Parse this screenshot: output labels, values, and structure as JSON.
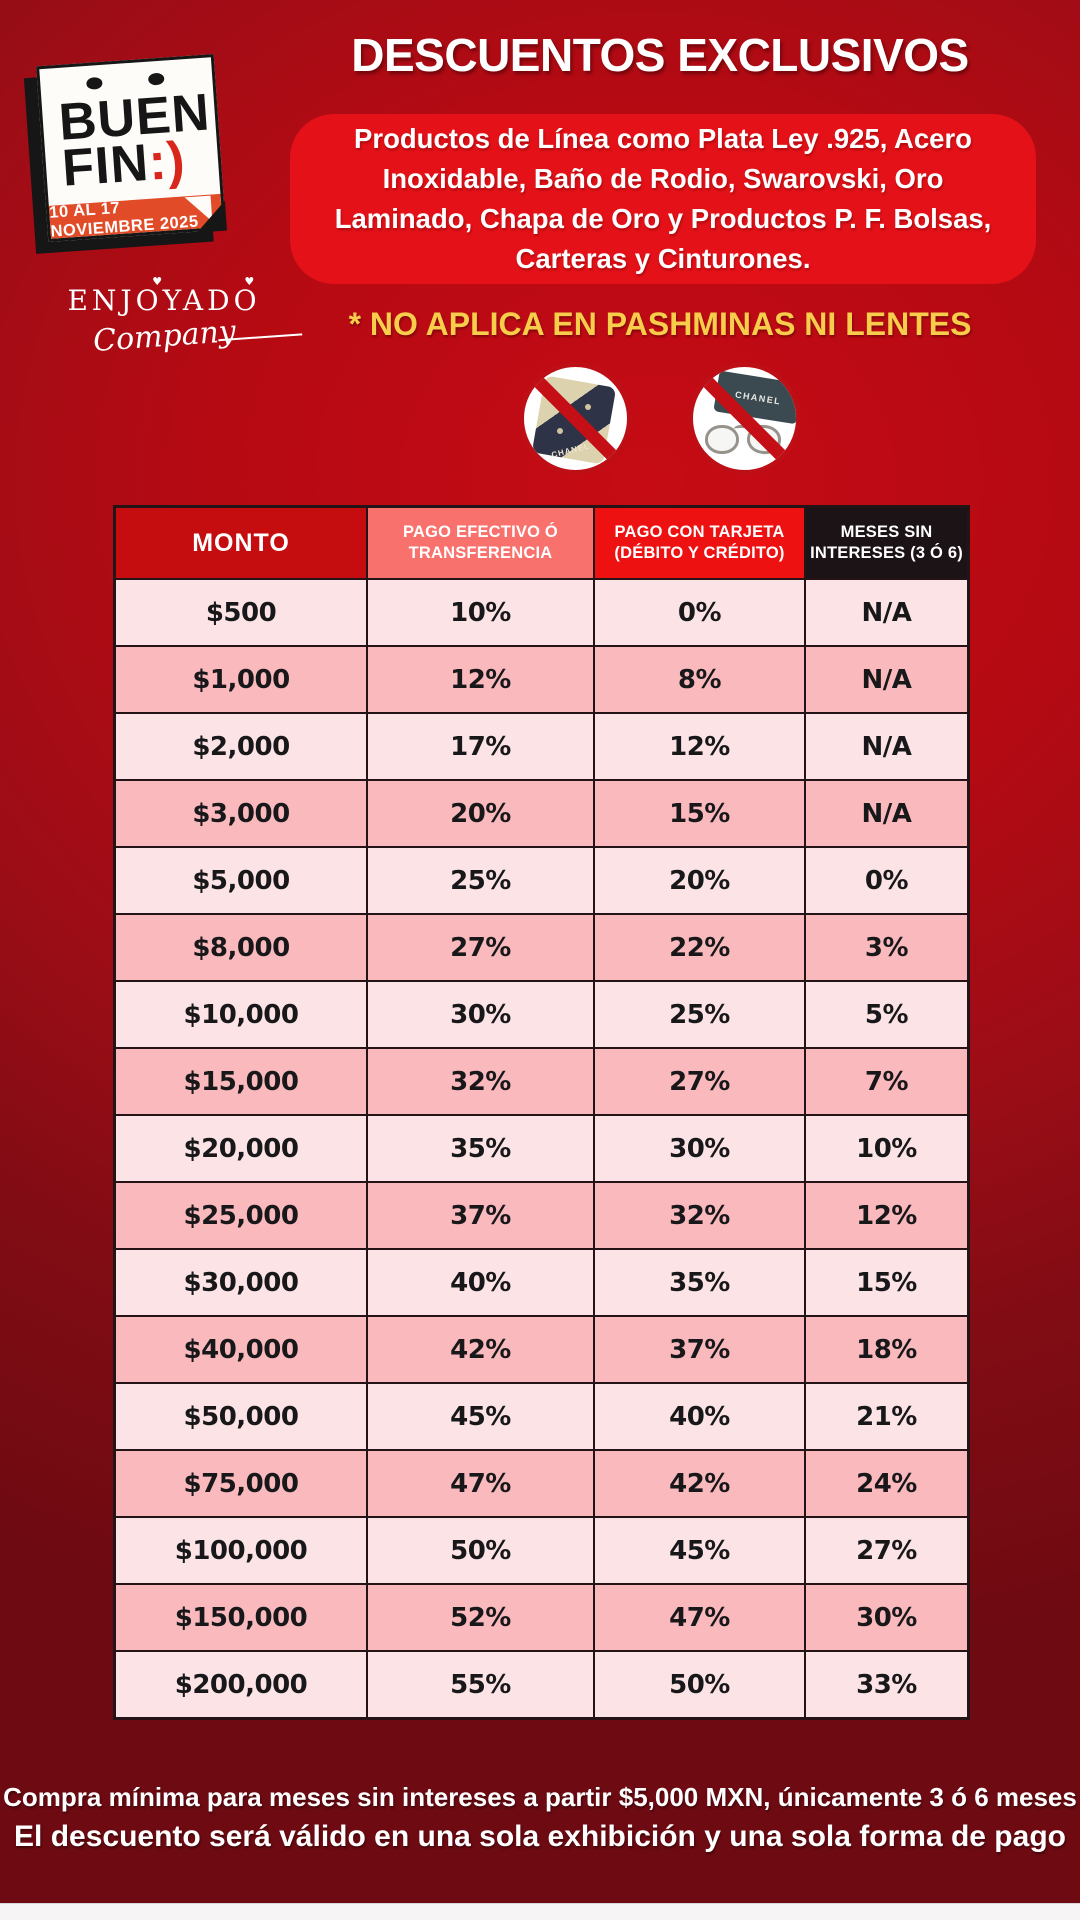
{
  "page": {
    "title": "DESCUENTOS EXCLUSIVOS"
  },
  "logo": {
    "line1": "BUEN",
    "line2": "FIN",
    "smiley": ":)",
    "date_banner": "10 AL 17 NOVIEMBRE 2025"
  },
  "brand": {
    "name": "ENJOYADO",
    "subname": "Company"
  },
  "promo_box": {
    "text": "Productos de Línea como Plata Ley .925, Acero Inoxidable, Baño de Rodio, Swarovski, Oro Laminado, Chapa de Oro y Productos P. F. Bolsas, Carteras y Cinturones.",
    "background": "#e41118"
  },
  "exclusion_note": "* NO APLICA EN PASHMINAS NI LENTES",
  "prohibited_items": [
    {
      "name": "pashminas",
      "label": "CHANEL"
    },
    {
      "name": "lentes",
      "label": "CHANEL"
    }
  ],
  "table": {
    "headers": [
      "MONTO",
      "PAGO EFECTIVO Ó\nTRANSFERENCIA",
      "PAGO CON TARJETA\n(DÉBITO Y CRÉDITO)",
      "MESES SIN\nINTERESES (3 Ó 6)"
    ],
    "header_colors": [
      "#c50c0e",
      "#f8716c",
      "#ee1111",
      "#1b1316"
    ],
    "row_colors": {
      "light": "#fce3e5",
      "dark": "#f9b9bd"
    },
    "rows": [
      [
        "$500",
        "10%",
        "0%",
        "N/A"
      ],
      [
        "$1,000",
        "12%",
        "8%",
        "N/A"
      ],
      [
        "$2,000",
        "17%",
        "12%",
        "N/A"
      ],
      [
        "$3,000",
        "20%",
        "15%",
        "N/A"
      ],
      [
        "$5,000",
        "25%",
        "20%",
        "0%"
      ],
      [
        "$8,000",
        "27%",
        "22%",
        "3%"
      ],
      [
        "$10,000",
        "30%",
        "25%",
        "5%"
      ],
      [
        "$15,000",
        "32%",
        "27%",
        "7%"
      ],
      [
        "$20,000",
        "35%",
        "30%",
        "10%"
      ],
      [
        "$25,000",
        "37%",
        "32%",
        "12%"
      ],
      [
        "$30,000",
        "40%",
        "35%",
        "15%"
      ],
      [
        "$40,000",
        "42%",
        "37%",
        "18%"
      ],
      [
        "$50,000",
        "45%",
        "40%",
        "21%"
      ],
      [
        "$75,000",
        "47%",
        "42%",
        "24%"
      ],
      [
        "$100,000",
        "50%",
        "45%",
        "27%"
      ],
      [
        "$150,000",
        "52%",
        "47%",
        "30%"
      ],
      [
        "$200,000",
        "55%",
        "50%",
        "33%"
      ]
    ]
  },
  "footer": {
    "line1": "Compra mínima para meses sin intereses a partir $5,000 MXN, únicamente 3 ó 6 meses",
    "line2": "El descuento será válido en una sola exhibición y una sola forma de pago"
  },
  "colors": {
    "background_center": "#c60b14",
    "background_edge": "#6e0a12",
    "note_yellow": "#f7cd4b",
    "prohibition_red": "#c30f15",
    "calendar_strip_orange": "#e24b27",
    "table_border": "#241418"
  }
}
